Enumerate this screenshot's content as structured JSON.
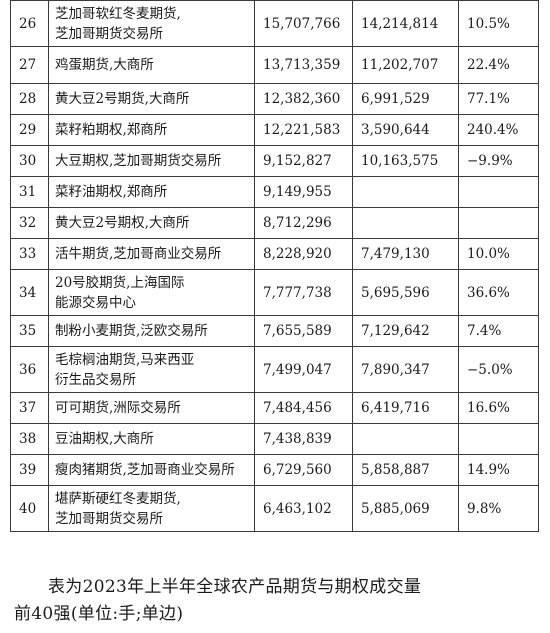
{
  "table": {
    "rows": [
      {
        "rank": "26",
        "name": [
          "芝加哥软红冬麦期货,",
          "芝加哥期货交易所"
        ],
        "vol2023": "15,707,766",
        "vol2022": "14,214,814",
        "change": "10.5%"
      },
      {
        "rank": "27",
        "name": [
          "鸡蛋期货,大商所"
        ],
        "vol2023": "13,713,359",
        "vol2022": "11,202,707",
        "change": "22.4%"
      },
      {
        "rank": "28",
        "name": [
          "黄大豆2号期货,大商所"
        ],
        "vol2023": "12,382,360",
        "vol2022": "6,991,529",
        "change": "77.1%"
      },
      {
        "rank": "29",
        "name": [
          "菜籽粕期权,郑商所"
        ],
        "vol2023": "12,221,583",
        "vol2022": "3,590,644",
        "change": "240.4%"
      },
      {
        "rank": "30",
        "name": [
          "大豆期权,芝加哥期货交易所"
        ],
        "vol2023": "9,152,827",
        "vol2022": "10,163,575",
        "change": "−9.9%"
      },
      {
        "rank": "31",
        "name": [
          "菜籽油期权,郑商所"
        ],
        "vol2023": "9,149,955",
        "vol2022": "",
        "change": ""
      },
      {
        "rank": "32",
        "name": [
          "黄大豆2号期权,大商所"
        ],
        "vol2023": "8,712,296",
        "vol2022": "",
        "change": ""
      },
      {
        "rank": "33",
        "name": [
          "活牛期货,芝加哥商业交易所"
        ],
        "vol2023": "8,228,920",
        "vol2022": "7,479,130",
        "change": "10.0%"
      },
      {
        "rank": "34",
        "name": [
          "20号胶期货,上海国际",
          "能源交易中心"
        ],
        "vol2023": "7,777,738",
        "vol2022": "5,695,596",
        "change": "36.6%"
      },
      {
        "rank": "35",
        "name": [
          "制粉小麦期货,泛欧交易所"
        ],
        "vol2023": "7,655,589",
        "vol2022": "7,129,642",
        "change": "7.4%"
      },
      {
        "rank": "36",
        "name": [
          "毛棕榈油期货,马来西亚",
          "衍生品交易所"
        ],
        "vol2023": "7,499,047",
        "vol2022": "7,890,347",
        "change": "−5.0%"
      },
      {
        "rank": "37",
        "name": [
          "可可期货,洲际交易所"
        ],
        "vol2023": "7,484,456",
        "vol2022": "6,419,716",
        "change": "16.6%"
      },
      {
        "rank": "38",
        "name": [
          "豆油期权,大商所"
        ],
        "vol2023": "7,438,839",
        "vol2022": "",
        "change": ""
      },
      {
        "rank": "39",
        "name": [
          "瘦肉猪期货,芝加哥商业交易所"
        ],
        "vol2023": "6,729,560",
        "vol2022": "5,858,887",
        "change": "14.9%"
      },
      {
        "rank": "40",
        "name": [
          "堪萨斯硬红冬麦期货,",
          "芝加哥期货交易所"
        ],
        "vol2023": "6,463,102",
        "vol2022": "5,885,069",
        "change": "9.8%"
      }
    ]
  },
  "caption": {
    "line1": "表为2023年上半年全球农产品期货与期权成交量",
    "line2": "前40强(单位:手;单边)"
  }
}
